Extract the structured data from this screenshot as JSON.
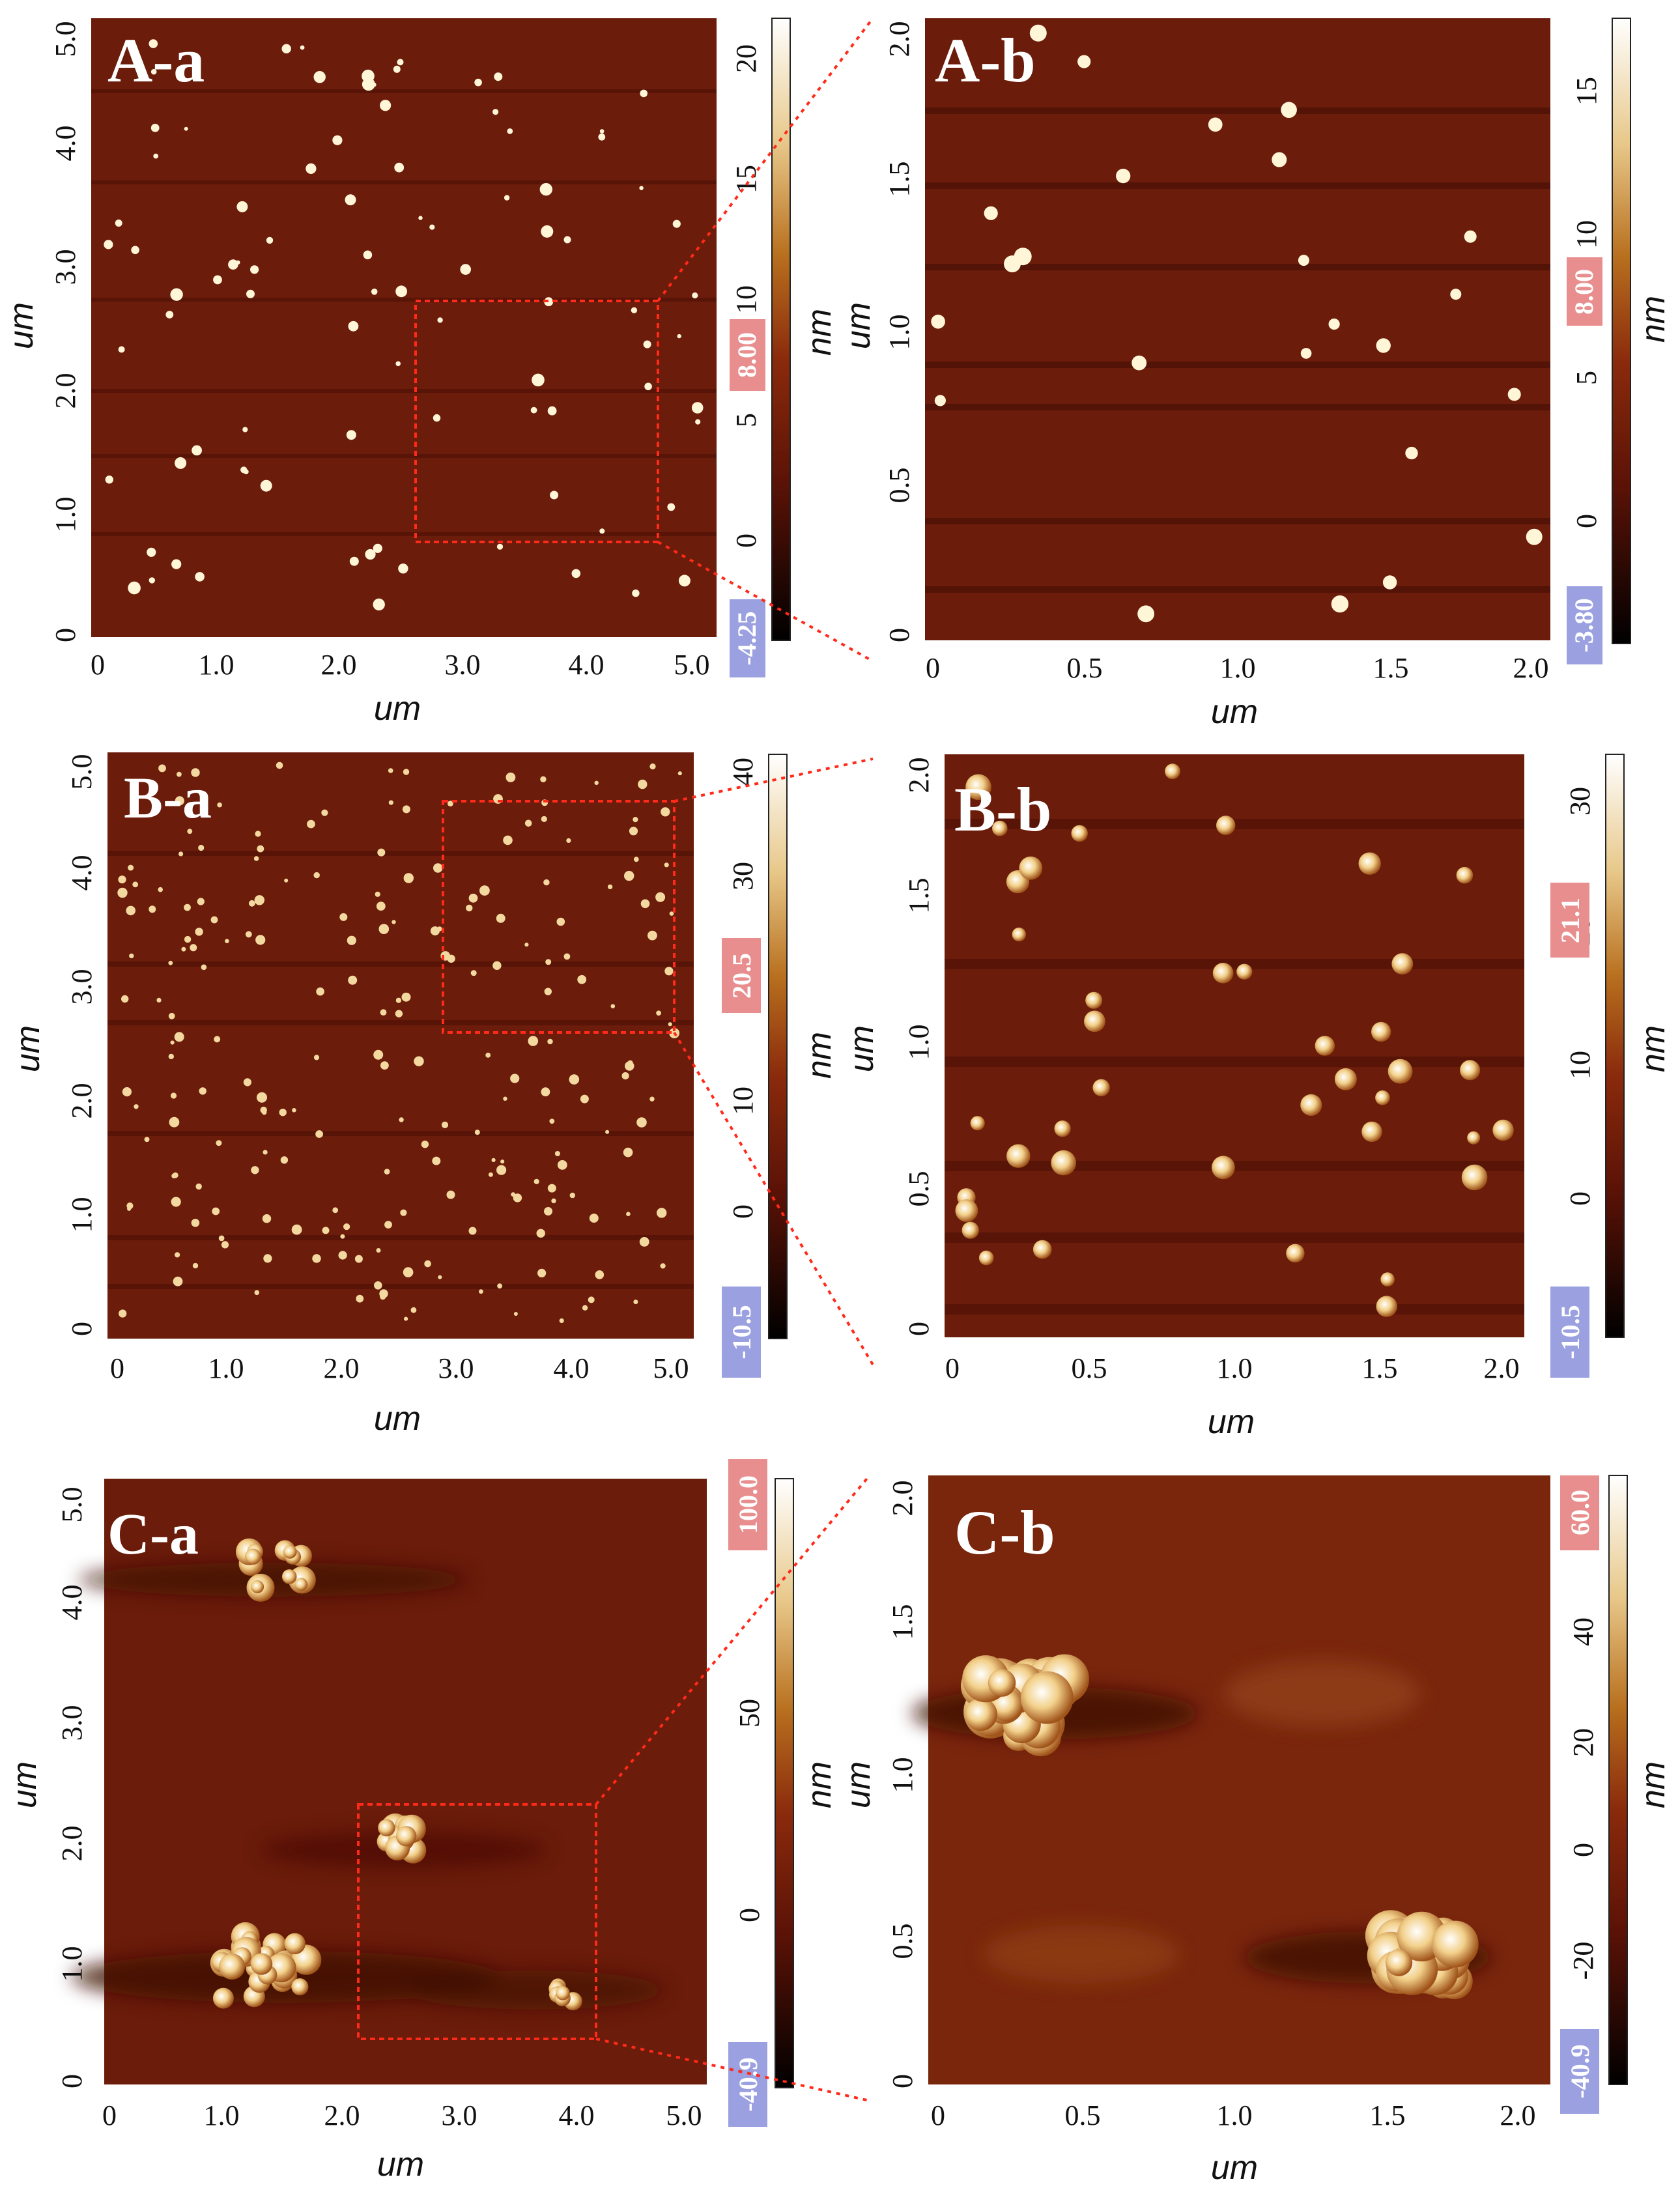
{
  "figure": {
    "panels": [
      {
        "id": "A-a",
        "label": "A-a",
        "x_axis": {
          "title": "um",
          "ticks": [
            "0",
            "1.0",
            "2.0",
            "3.0",
            "4.0",
            "5.0"
          ]
        },
        "y_axis": {
          "title": "um",
          "ticks": [
            "0",
            "1.0",
            "2.0",
            "3.0",
            "4.0",
            "5.0"
          ]
        },
        "colorbar": {
          "unit": "nm",
          "ticks": [
            "0",
            "5",
            "10",
            "15",
            "20"
          ],
          "max_label": "8.00",
          "min_label": "-4.25"
        }
      },
      {
        "id": "A-b",
        "label": "A-b",
        "x_axis": {
          "title": "um",
          "ticks": [
            "0",
            "0.5",
            "1.0",
            "1.5",
            "2.0"
          ]
        },
        "y_axis": {
          "title": "um",
          "ticks": [
            "0",
            "0.5",
            "1.0",
            "1.5",
            "2.0"
          ]
        },
        "colorbar": {
          "unit": "nm",
          "ticks": [
            "0",
            "5",
            "10",
            "15"
          ],
          "max_label": "8.00",
          "min_label": "-3.80"
        }
      },
      {
        "id": "B-a",
        "label": "B-a",
        "x_axis": {
          "title": "um",
          "ticks": [
            "0",
            "1.0",
            "2.0",
            "3.0",
            "4.0",
            "5.0"
          ]
        },
        "y_axis": {
          "title": "um",
          "ticks": [
            "0",
            "1.0",
            "2.0",
            "3.0",
            "4.0",
            "5.0"
          ]
        },
        "colorbar": {
          "unit": "nm",
          "ticks": [
            "0",
            "10",
            "20",
            "30",
            "40"
          ],
          "max_label": "20.5",
          "min_label": "-10.5"
        }
      },
      {
        "id": "B-b",
        "label": "B-b",
        "x_axis": {
          "title": "um",
          "ticks": [
            "0",
            "0.5",
            "1.0",
            "1.5",
            "2.0"
          ]
        },
        "y_axis": {
          "title": "um",
          "ticks": [
            "0",
            "0.5",
            "1.0",
            "1.5",
            "2.0"
          ]
        },
        "colorbar": {
          "unit": "nm",
          "ticks": [
            "0",
            "10",
            "20",
            "30"
          ],
          "max_label": "21.1",
          "min_label": "-10.5"
        }
      },
      {
        "id": "C-a",
        "label": "C-a",
        "x_axis": {
          "title": "um",
          "ticks": [
            "0",
            "1.0",
            "2.0",
            "3.0",
            "4.0",
            "5.0"
          ]
        },
        "y_axis": {
          "title": "um",
          "ticks": [
            "0",
            "1.0",
            "2.0",
            "3.0",
            "4.0",
            "5.0"
          ]
        },
        "colorbar": {
          "unit": "nm",
          "ticks": [
            "0",
            "50",
            "100"
          ],
          "max_label": "100.0",
          "min_label": "-40.9"
        }
      },
      {
        "id": "C-b",
        "label": "C-b",
        "x_axis": {
          "title": "um",
          "ticks": [
            "0",
            "0.5",
            "1.0",
            "1.5",
            "2.0"
          ]
        },
        "y_axis": {
          "title": "um",
          "ticks": [
            "0",
            "0.5",
            "1.0",
            "1.5",
            "2.0"
          ]
        },
        "colorbar": {
          "unit": "nm",
          "ticks": [
            "-20",
            "0",
            "20",
            "40"
          ],
          "max_label": "60.0",
          "min_label": "-40.9"
        }
      }
    ],
    "colors": {
      "background": "#6b1c0a",
      "particle": "#fff6d8",
      "zoom_box": "#ff2a1a",
      "badge_max": "#e88e8e",
      "badge_min": "#9aa0e0"
    }
  }
}
